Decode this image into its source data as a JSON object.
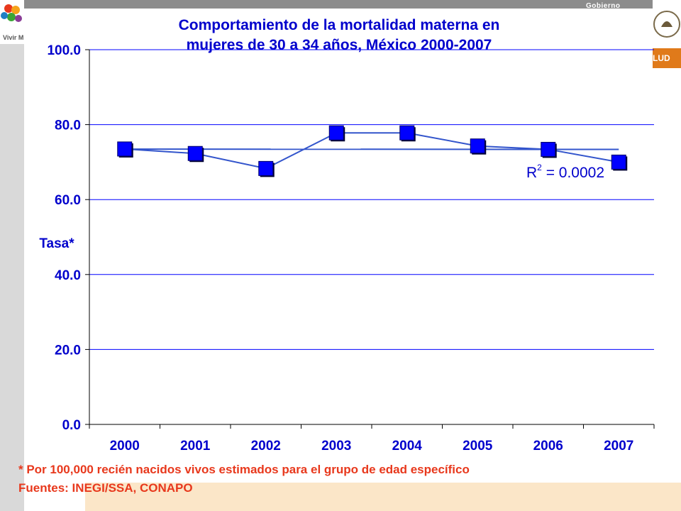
{
  "header": {
    "gobierno_label": "Gobierno",
    "salud_label": "LUD",
    "logo_caption": "Vivir M"
  },
  "chart_data": {
    "type": "line",
    "title_line1": "Comportamiento de la mortalidad materna en",
    "title_line2": "mujeres de 30 a 34 años, México 2000-2007",
    "ylabel": "Tasa*",
    "xlabel": "",
    "categories": [
      "2000",
      "2001",
      "2002",
      "2003",
      "2004",
      "2005",
      "2006",
      "2007"
    ],
    "values": [
      73.5,
      72.3,
      68.3,
      77.8,
      77.8,
      74.3,
      73.4,
      70.0
    ],
    "ylim": [
      0,
      100
    ],
    "y_ticks": [
      "0.0",
      "20.0",
      "40.0",
      "60.0",
      "80.0",
      "100.0"
    ],
    "trendline": {
      "r2_label": "R",
      "r2_sup": "2",
      "r2_value": " = 0.0002"
    },
    "grid": true,
    "colors": {
      "series": "#0000ff",
      "line": "#3355cc",
      "title": "#0000cc",
      "axis": "#000000"
    }
  },
  "footnotes": {
    "note": "* Por 100,000 recién nacidos vivos estimados para el grupo de edad específico",
    "sources": "Fuentes: INEGI/SSA, CONAPO"
  }
}
